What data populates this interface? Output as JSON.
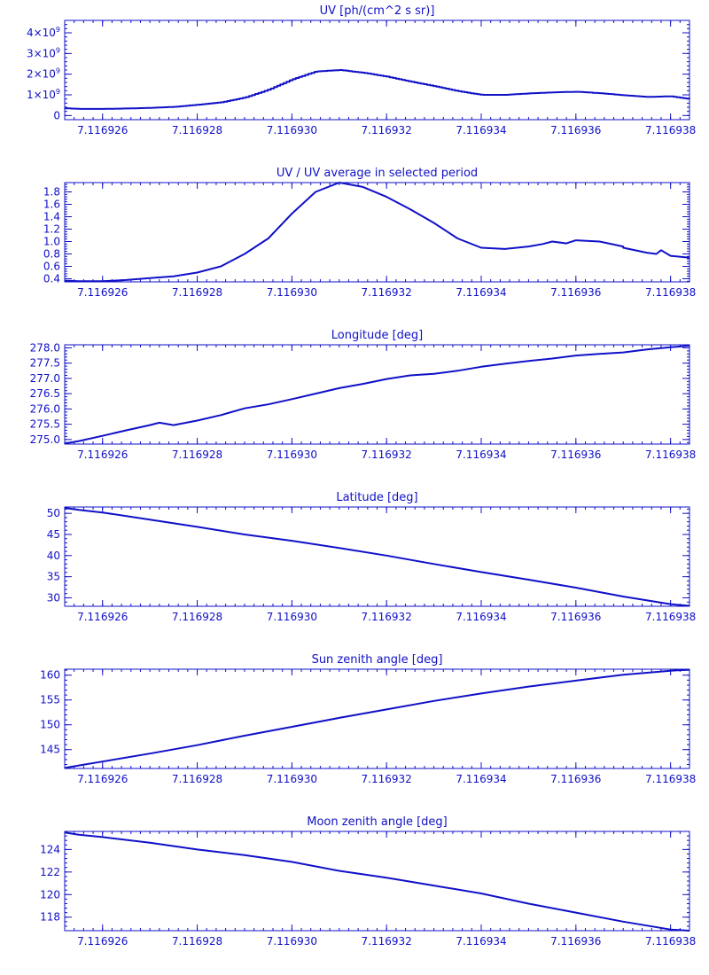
{
  "colors": {
    "plot": "#1010c8",
    "background": "#ffffff"
  },
  "chart_data": [
    {
      "type": "line",
      "title": "UV [ph/(cm^2 s sr)]",
      "x_tick_labels": [
        "7.116926",
        "7.116928",
        "7.116930",
        "7.116932",
        "7.116934",
        "7.116936",
        "7.116938"
      ],
      "x_ticks": [
        7.116926,
        7.116928,
        7.11693,
        7.116932,
        7.116934,
        7.116936,
        7.116938
      ],
      "xlim": [
        7.1169252,
        7.1169384
      ],
      "ylim": [
        -200000000,
        4600000000
      ],
      "y_ticks": [
        0,
        1000000000,
        2000000000,
        3000000000,
        4000000000
      ],
      "y_tick_labels": [
        {
          "base": "0",
          "exp": ""
        },
        {
          "base": "1×10",
          "exp": "9"
        },
        {
          "base": "2×10",
          "exp": "9"
        },
        {
          "base": "3×10",
          "exp": "9"
        },
        {
          "base": "4×10",
          "exp": "9"
        }
      ],
      "step": true,
      "x": [
        7.1169252,
        7.1169255,
        7.116926,
        7.1169265,
        7.116927,
        7.1169275,
        7.116928,
        7.1169285,
        7.116929,
        7.1169295,
        7.11693,
        7.1169305,
        7.116931,
        7.1169315,
        7.116932,
        7.1169325,
        7.116933,
        7.1169335,
        7.116934,
        7.1169345,
        7.116935,
        7.1169355,
        7.116936,
        7.1169365,
        7.116937,
        7.1169375,
        7.116938,
        7.1169384
      ],
      "y": [
        350000000,
        320000000,
        320000000,
        340000000,
        370000000,
        420000000,
        520000000,
        640000000,
        870000000,
        1250000000,
        1750000000,
        2130000000,
        2200000000,
        2070000000,
        1880000000,
        1640000000,
        1420000000,
        1180000000,
        1000000000,
        1000000000,
        1070000000,
        1120000000,
        1150000000,
        1080000000,
        980000000,
        900000000,
        930000000,
        800000000
      ]
    },
    {
      "type": "line",
      "title": "UV / UV average in selected period",
      "x_tick_labels": [
        "7.116926",
        "7.116928",
        "7.116930",
        "7.116932",
        "7.116934",
        "7.116936",
        "7.116938"
      ],
      "x_ticks": [
        7.116926,
        7.116928,
        7.11693,
        7.116932,
        7.116934,
        7.116936,
        7.116938
      ],
      "xlim": [
        7.1169252,
        7.1169384
      ],
      "ylim": [
        0.35,
        1.95
      ],
      "y_ticks": [
        0.4,
        0.6,
        0.8,
        1.0,
        1.2,
        1.4,
        1.6,
        1.8
      ],
      "y_tick_labels": [
        {
          "base": "0.4",
          "exp": ""
        },
        {
          "base": "0.6",
          "exp": ""
        },
        {
          "base": "0.8",
          "exp": ""
        },
        {
          "base": "1.0",
          "exp": ""
        },
        {
          "base": "1.2",
          "exp": ""
        },
        {
          "base": "1.4",
          "exp": ""
        },
        {
          "base": "1.6",
          "exp": ""
        },
        {
          "base": "1.8",
          "exp": ""
        }
      ],
      "step": false,
      "x": [
        7.1169252,
        7.1169255,
        7.116926,
        7.1169265,
        7.116927,
        7.1169275,
        7.116928,
        7.1169285,
        7.116929,
        7.1169295,
        7.11693,
        7.1169305,
        7.116931,
        7.1169315,
        7.116932,
        7.1169325,
        7.116933,
        7.1169335,
        7.116934,
        7.1169345,
        7.116935,
        7.1169353,
        7.1169355,
        7.1169358,
        7.116936,
        7.1169365,
        7.116937,
        7.116937,
        7.1169375,
        7.1169377,
        7.1169378,
        7.116938,
        7.1169384
      ],
      "y": [
        0.37,
        0.36,
        0.36,
        0.38,
        0.41,
        0.44,
        0.5,
        0.6,
        0.8,
        1.05,
        1.45,
        1.8,
        1.95,
        1.88,
        1.72,
        1.52,
        1.3,
        1.05,
        0.9,
        0.88,
        0.92,
        0.96,
        1.0,
        0.97,
        1.02,
        1.0,
        0.92,
        0.9,
        0.82,
        0.8,
        0.86,
        0.77,
        0.74
      ]
    },
    {
      "type": "line",
      "title": "Longitude [deg]",
      "x_tick_labels": [
        "7.116926",
        "7.116928",
        "7.116930",
        "7.116932",
        "7.116934",
        "7.116936",
        "7.116938"
      ],
      "x_ticks": [
        7.116926,
        7.116928,
        7.11693,
        7.116932,
        7.116934,
        7.116936,
        7.116938
      ],
      "xlim": [
        7.1169252,
        7.1169384
      ],
      "ylim": [
        274.85,
        278.1
      ],
      "y_ticks": [
        275.0,
        275.5,
        276.0,
        276.5,
        277.0,
        277.5,
        278.0
      ],
      "y_tick_labels": [
        {
          "base": "275.0",
          "exp": ""
        },
        {
          "base": "275.5",
          "exp": ""
        },
        {
          "base": "276.0",
          "exp": ""
        },
        {
          "base": "276.5",
          "exp": ""
        },
        {
          "base": "277.0",
          "exp": ""
        },
        {
          "base": "277.5",
          "exp": ""
        },
        {
          "base": "278.0",
          "exp": ""
        }
      ],
      "step": false,
      "x": [
        7.1169252,
        7.1169255,
        7.116926,
        7.1169265,
        7.116927,
        7.1169272,
        7.1169275,
        7.116928,
        7.1169285,
        7.116929,
        7.1169295,
        7.11693,
        7.1169305,
        7.116931,
        7.1169315,
        7.116932,
        7.1169325,
        7.116933,
        7.1169335,
        7.116934,
        7.1169345,
        7.116935,
        7.1169355,
        7.116936,
        7.1169365,
        7.116937,
        7.1169375,
        7.116938,
        7.1169384
      ],
      "y": [
        274.87,
        274.95,
        275.12,
        275.3,
        275.47,
        275.55,
        275.47,
        275.62,
        275.8,
        276.02,
        276.15,
        276.32,
        276.5,
        276.68,
        276.82,
        276.98,
        277.1,
        277.15,
        277.25,
        277.38,
        277.48,
        277.57,
        277.65,
        277.75,
        277.8,
        277.85,
        277.95,
        278.02,
        278.07
      ]
    },
    {
      "type": "line",
      "title": "Latitude [deg]",
      "x_tick_labels": [
        "7.116926",
        "7.116928",
        "7.116930",
        "7.116932",
        "7.116934",
        "7.116936",
        "7.116938"
      ],
      "x_ticks": [
        7.116926,
        7.116928,
        7.11693,
        7.116932,
        7.116934,
        7.116936,
        7.116938
      ],
      "xlim": [
        7.1169252,
        7.1169384
      ],
      "ylim": [
        28.0,
        51.5
      ],
      "y_ticks": [
        30,
        35,
        40,
        45,
        50
      ],
      "y_tick_labels": [
        {
          "base": "30",
          "exp": ""
        },
        {
          "base": "35",
          "exp": ""
        },
        {
          "base": "40",
          "exp": ""
        },
        {
          "base": "45",
          "exp": ""
        },
        {
          "base": "50",
          "exp": ""
        }
      ],
      "step": false,
      "x": [
        7.1169252,
        7.1169255,
        7.116926,
        7.116927,
        7.116928,
        7.116929,
        7.11693,
        7.116931,
        7.116932,
        7.116933,
        7.116934,
        7.116935,
        7.116936,
        7.116937,
        7.116938,
        7.1169384
      ],
      "y": [
        51.3,
        50.8,
        50.2,
        48.5,
        46.8,
        45.0,
        43.5,
        41.8,
        40.0,
        38.0,
        36.1,
        34.3,
        32.4,
        30.3,
        28.5,
        28.1
      ]
    },
    {
      "type": "line",
      "title": "Sun zenith angle [deg]",
      "x_tick_labels": [
        "7.116926",
        "7.116928",
        "7.116930",
        "7.116932",
        "7.116934",
        "7.116936",
        "7.116938"
      ],
      "x_ticks": [
        7.116926,
        7.116928,
        7.11693,
        7.116932,
        7.116934,
        7.116936,
        7.116938
      ],
      "xlim": [
        7.1169252,
        7.1169384
      ],
      "ylim": [
        141.2,
        161.2
      ],
      "y_ticks": [
        145,
        150,
        155,
        160
      ],
      "y_tick_labels": [
        {
          "base": "145",
          "exp": ""
        },
        {
          "base": "150",
          "exp": ""
        },
        {
          "base": "155",
          "exp": ""
        },
        {
          "base": "160",
          "exp": ""
        }
      ],
      "step": false,
      "x": [
        7.1169252,
        7.1169255,
        7.116926,
        7.116927,
        7.116928,
        7.116929,
        7.11693,
        7.116931,
        7.116932,
        7.116933,
        7.116934,
        7.116935,
        7.116936,
        7.116937,
        7.116938,
        7.1169384
      ],
      "y": [
        141.3,
        141.8,
        142.6,
        144.2,
        145.9,
        147.8,
        149.6,
        151.4,
        153.1,
        154.8,
        156.3,
        157.7,
        158.9,
        160.1,
        160.9,
        161.1
      ]
    },
    {
      "type": "line",
      "title": "Moon zenith angle [deg]",
      "x_tick_labels": [
        "7.116926",
        "7.116928",
        "7.116930",
        "7.116932",
        "7.116934",
        "7.116936",
        "7.116938"
      ],
      "x_ticks": [
        7.116926,
        7.116928,
        7.11693,
        7.116932,
        7.116934,
        7.116936,
        7.116938
      ],
      "xlim": [
        7.1169252,
        7.1169384
      ],
      "ylim": [
        116.8,
        125.6
      ],
      "y_ticks": [
        118,
        120,
        122,
        124
      ],
      "y_tick_labels": [
        {
          "base": "118",
          "exp": ""
        },
        {
          "base": "120",
          "exp": ""
        },
        {
          "base": "122",
          "exp": ""
        },
        {
          "base": "124",
          "exp": ""
        }
      ],
      "step": false,
      "x": [
        7.1169252,
        7.1169255,
        7.116926,
        7.116927,
        7.116928,
        7.116929,
        7.11693,
        7.116931,
        7.116932,
        7.116933,
        7.116934,
        7.116935,
        7.116936,
        7.116937,
        7.116938,
        7.1169384
      ],
      "y": [
        125.5,
        125.3,
        125.1,
        124.6,
        124.0,
        123.5,
        122.9,
        122.1,
        121.5,
        120.8,
        120.1,
        119.2,
        118.4,
        117.6,
        116.9,
        116.8
      ]
    }
  ]
}
